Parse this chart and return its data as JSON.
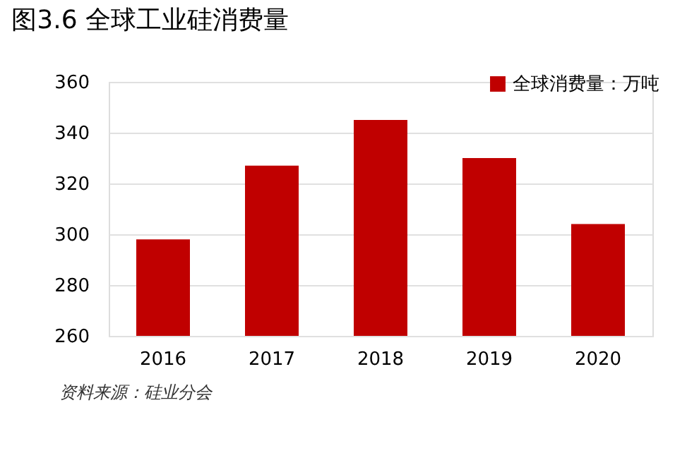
{
  "chart_data": {
    "type": "bar",
    "title": "图3.6 全球工业硅消费量",
    "categories": [
      "2016",
      "2017",
      "2018",
      "2019",
      "2020"
    ],
    "series": [
      {
        "name": "全球消费量：万吨",
        "color": "#c00000",
        "values": [
          298,
          327,
          345,
          330,
          304
        ]
      }
    ],
    "ylim": [
      260,
      360
    ],
    "yticks": [
      260,
      280,
      300,
      320,
      340,
      360
    ],
    "grid": "y",
    "legend": "top right",
    "annotations": [
      "资料来源：硅业分会"
    ]
  }
}
